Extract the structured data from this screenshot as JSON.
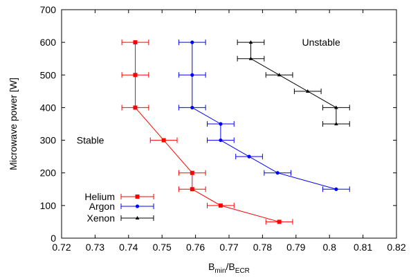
{
  "chart_data": {
    "type": "scatter",
    "title": "",
    "xlabel": {
      "main": "B",
      "sub1": "min",
      "sep": "/B",
      "sub2": "ECR"
    },
    "ylabel": "Microwave power [W]",
    "xlim": [
      0.72,
      0.82
    ],
    "ylim": [
      0,
      700
    ],
    "xticks": [
      "0.72",
      "0.73",
      "0.74",
      "0.75",
      "0.76",
      "0.77",
      "0.78",
      "0.79",
      "0.8",
      "0.81",
      "0.82"
    ],
    "yticks": [
      "0",
      "100",
      "200",
      "300",
      "400",
      "500",
      "600",
      "700"
    ],
    "grid": false,
    "legend_position": "bottom-left",
    "annotations": [
      {
        "text": "Stable",
        "x": 0.7245,
        "y": 300
      },
      {
        "text": "Unstable",
        "x": 0.7918,
        "y": 600
      }
    ],
    "series": [
      {
        "name": "Helium",
        "color": "#ff0000",
        "marker": "square",
        "points": [
          {
            "x": 0.742,
            "y": 600,
            "xerr": 0.004
          },
          {
            "x": 0.742,
            "y": 500,
            "xerr": 0.004
          },
          {
            "x": 0.742,
            "y": 400,
            "xerr": 0.004
          },
          {
            "x": 0.7505,
            "y": 300,
            "xerr": 0.004
          },
          {
            "x": 0.759,
            "y": 200,
            "xerr": 0.004
          },
          {
            "x": 0.759,
            "y": 150,
            "xerr": 0.004
          },
          {
            "x": 0.7675,
            "y": 100,
            "xerr": 0.004
          },
          {
            "x": 0.785,
            "y": 50,
            "xerr": 0.004
          }
        ]
      },
      {
        "name": "Argon",
        "color": "#0000ff",
        "marker": "circle",
        "points": [
          {
            "x": 0.759,
            "y": 600,
            "xerr": 0.004
          },
          {
            "x": 0.759,
            "y": 500,
            "xerr": 0.004
          },
          {
            "x": 0.759,
            "y": 400,
            "xerr": 0.004
          },
          {
            "x": 0.7675,
            "y": 350,
            "xerr": 0.004
          },
          {
            "x": 0.7675,
            "y": 300,
            "xerr": 0.004
          },
          {
            "x": 0.776,
            "y": 250,
            "xerr": 0.004
          },
          {
            "x": 0.7845,
            "y": 200,
            "xerr": 0.004
          },
          {
            "x": 0.802,
            "y": 150,
            "xerr": 0.004
          }
        ]
      },
      {
        "name": "Xenon",
        "color": "#000000",
        "marker": "triangle",
        "points": [
          {
            "x": 0.7765,
            "y": 600,
            "xerr": 0.004
          },
          {
            "x": 0.7765,
            "y": 550,
            "xerr": 0.004
          },
          {
            "x": 0.785,
            "y": 500,
            "xerr": 0.004
          },
          {
            "x": 0.7935,
            "y": 450,
            "xerr": 0.004
          },
          {
            "x": 0.802,
            "y": 400,
            "xerr": 0.004
          },
          {
            "x": 0.802,
            "y": 350,
            "xerr": 0.004
          }
        ]
      }
    ]
  }
}
